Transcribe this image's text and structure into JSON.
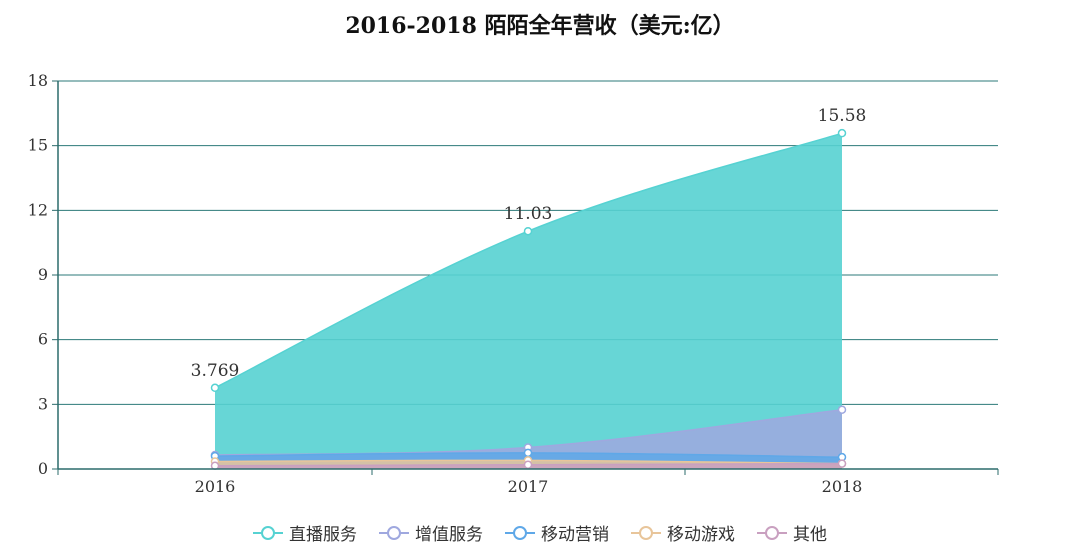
{
  "title": "2016-2018 陌陌全年营收（美元:亿）",
  "colors": {
    "live": "#56d2d2",
    "vas": "#9fa8df",
    "marketing": "#5fa8e8",
    "games": "#e8c59a",
    "other": "#c9a0c0",
    "axis": "#2b6b6b",
    "grid": "#2b7a78"
  },
  "chart_data": {
    "type": "area",
    "categories": [
      "2016",
      "2017",
      "2018"
    ],
    "ylim": [
      0,
      18
    ],
    "yticks": [
      "0",
      "3",
      "6",
      "9",
      "12",
      "15",
      "18"
    ],
    "grid": true,
    "legend_position": "bottom",
    "series": [
      {
        "name": "直播服务",
        "values": [
          3.769,
          11.03,
          15.58
        ],
        "labels": [
          "3.769",
          "11.03",
          "15.58"
        ],
        "color": "#56d2d2"
      },
      {
        "name": "增值服务",
        "values": [
          0.65,
          1.0,
          2.75
        ],
        "color": "#9fa8df"
      },
      {
        "name": "移动营销",
        "values": [
          0.6,
          0.75,
          0.55
        ],
        "color": "#5fa8e8"
      },
      {
        "name": "移动游戏",
        "values": [
          0.35,
          0.4,
          0.25
        ],
        "color": "#e8c59a"
      },
      {
        "name": "其他",
        "values": [
          0.15,
          0.2,
          0.25
        ],
        "color": "#c9a0c0"
      }
    ]
  }
}
